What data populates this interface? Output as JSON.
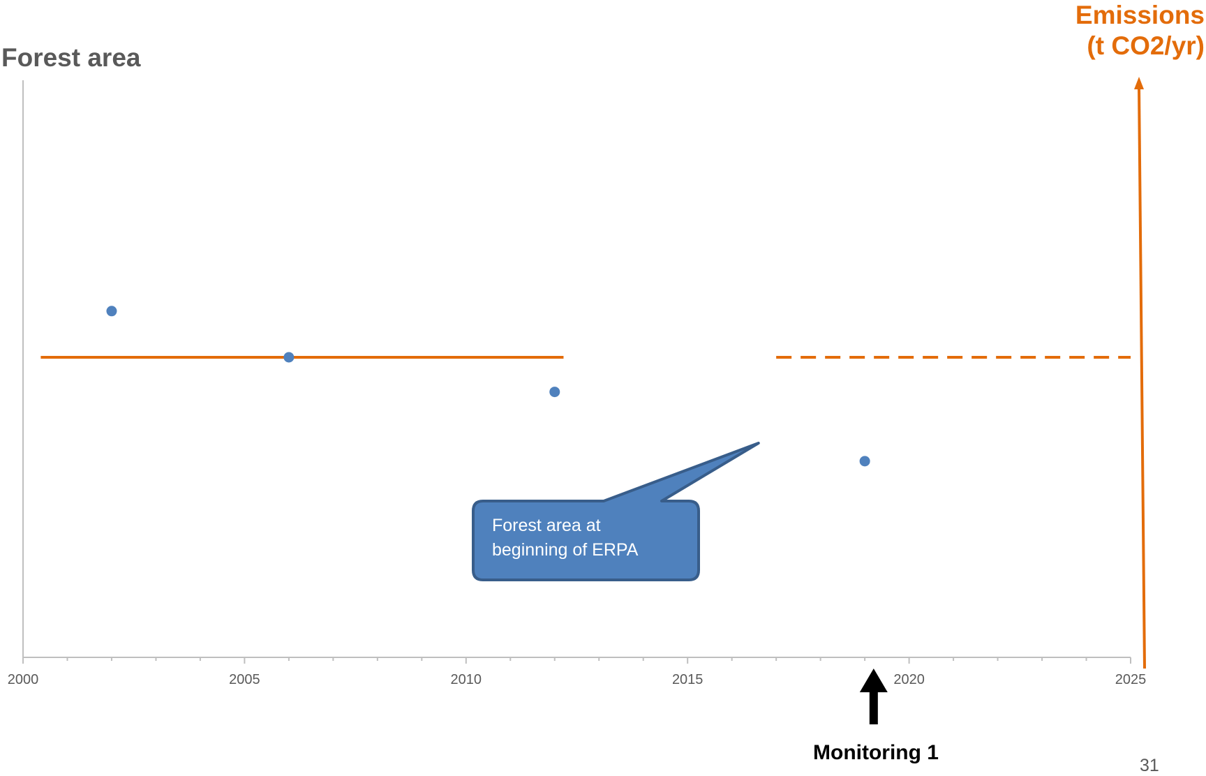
{
  "chart_data": {
    "type": "scatter",
    "title": "",
    "ylabel": "Forest area",
    "y2label": [
      "Emissions",
      "(t CO2/yr)"
    ],
    "xlim": [
      2000,
      2025
    ],
    "xticks": [
      "2000",
      "2005",
      "2010",
      "2015",
      "2020",
      "2025"
    ],
    "series": [
      {
        "points": [
          {
            "x": 2002.0,
            "y": 0.6
          },
          {
            "x": 2006.0,
            "y": 0.52
          },
          {
            "x": 2012.0,
            "y": 0.46
          },
          {
            "x": 2019.0,
            "y": 0.34
          }
        ],
        "color": "#4F81BD"
      }
    ],
    "reference_line": {
      "y": 0.52,
      "solid_x": [
        2000.4,
        2012.2
      ],
      "dashed_x": [
        2017.0,
        2025.0
      ],
      "color": "#E36C0A"
    },
    "callout": {
      "lines": [
        "Forest area at",
        "beginning of ERPA"
      ],
      "points_to_x": 2016.6
    },
    "monitoring_marker": {
      "x": 2019.2,
      "label": "Monitoring 1"
    }
  },
  "page_number": "31",
  "colors": {
    "axis": "#BFBFBF",
    "orange": "#E36C0A",
    "marker": "#4F81BD",
    "callout_fill": "#4F81BD",
    "callout_border": "#385D8A"
  }
}
